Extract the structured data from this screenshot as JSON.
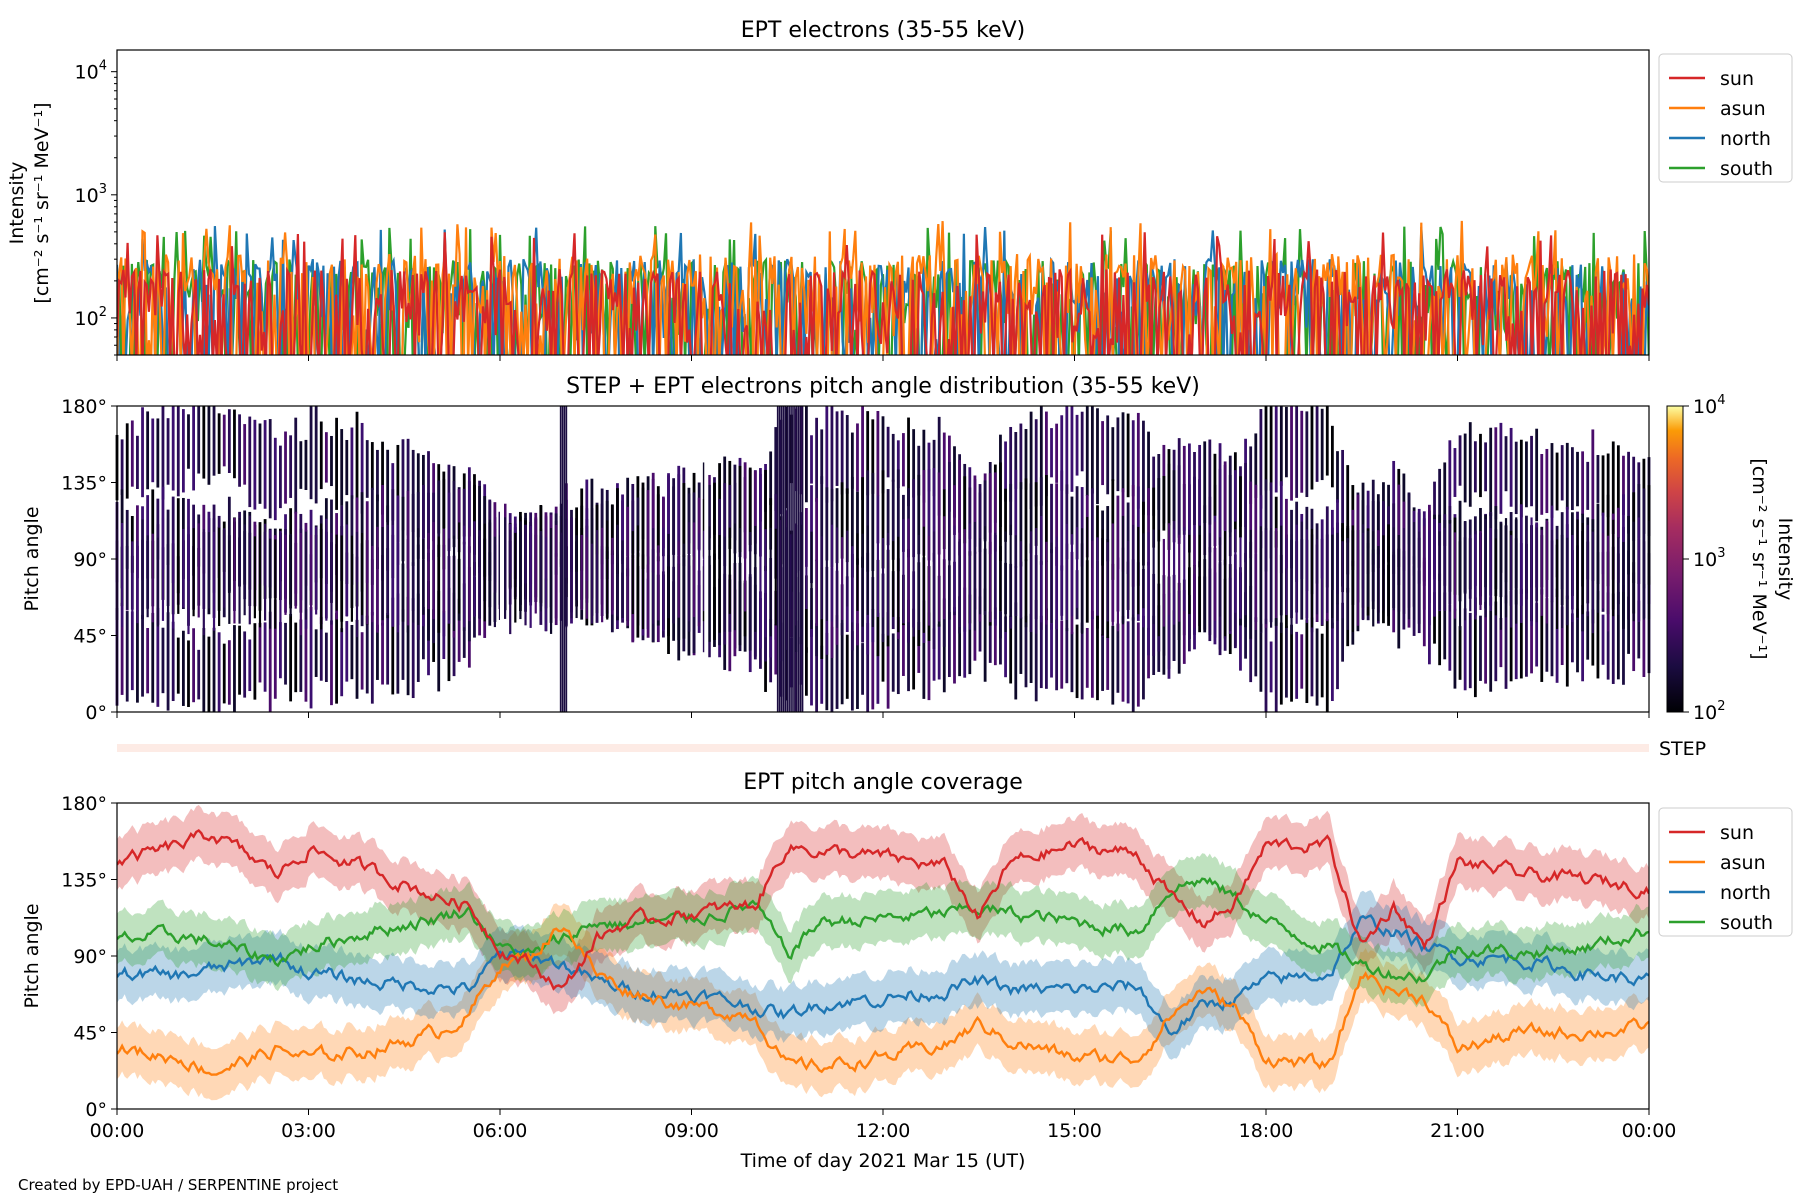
{
  "footer": "Created by EPD-UAH / SERPENTINE project",
  "colors": {
    "sun": "#d62728",
    "asun": "#ff7f0e",
    "north": "#1f77b4",
    "south": "#2ca02c"
  },
  "chart_data": [
    {
      "type": "line",
      "title": "EPT electrons (35-55 keV)",
      "ylabel_line1": "Intensity",
      "ylabel_line2": "[cm⁻² s⁻¹ sr⁻¹ MeV⁻¹]",
      "yscale": "log",
      "ylim": [
        50,
        15000
      ],
      "yticks": [
        {
          "base": "10",
          "exp": "2",
          "value": 100
        },
        {
          "base": "10",
          "exp": "3",
          "value": 1000
        },
        {
          "base": "10",
          "exp": "4",
          "value": 10000
        }
      ],
      "xlim_hours": [
        0,
        24
      ],
      "legend_position": "upper right, outside axes",
      "series": [
        {
          "name": "sun",
          "color": "#d62728",
          "typical_range": [
            50,
            250
          ],
          "max": 500
        },
        {
          "name": "asun",
          "color": "#ff7f0e",
          "typical_range": [
            60,
            330
          ],
          "max": 620
        },
        {
          "name": "north",
          "color": "#1f77b4",
          "typical_range": [
            60,
            300
          ],
          "max": 560
        },
        {
          "name": "south",
          "color": "#2ca02c",
          "typical_range": [
            60,
            300
          ],
          "max": 560
        }
      ]
    },
    {
      "type": "heatmap",
      "title": "STEP + EPT electrons pitch angle distribution (35-55 keV)",
      "ylabel": "Pitch angle",
      "ylim": [
        0,
        180
      ],
      "yticks": [
        "0°",
        "45°",
        "90°",
        "135°",
        "180°"
      ],
      "colormap": "inferno",
      "colorbar_scale": "log",
      "colorbar_range": [
        100,
        10000
      ],
      "colorbar_ticks": [
        {
          "base": "10",
          "exp": "2"
        },
        {
          "base": "10",
          "exp": "3"
        },
        {
          "base": "10",
          "exp": "4"
        }
      ],
      "colorbar_label": "Intensity\n[cm⁻² s⁻¹ sr⁻¹ MeV⁻¹]",
      "step_label": "STEP"
    },
    {
      "type": "area",
      "title": "EPT pitch angle coverage",
      "ylabel": "Pitch angle",
      "ylim": [
        0,
        180
      ],
      "yticks": [
        "0°",
        "45°",
        "90°",
        "135°",
        "180°"
      ],
      "xlabel": "Time of day 2021 Mar 15 (UT)",
      "xticks": [
        "00:00",
        "03:00",
        "06:00",
        "09:00",
        "12:00",
        "15:00",
        "18:00",
        "21:00",
        "00:00"
      ],
      "legend_position": "upper right, outside axes",
      "x_hours": [
        0,
        1,
        1.5,
        2,
        2.5,
        3,
        4,
        5,
        5.5,
        6,
        6.5,
        7,
        7.5,
        8,
        9,
        10,
        10.5,
        11,
        12,
        13,
        13.5,
        14,
        15,
        16,
        16.5,
        17,
        17.5,
        18,
        19,
        19.5,
        20,
        20.5,
        21,
        22,
        23,
        24
      ],
      "series": [
        {
          "name": "sun",
          "color": "#d62728",
          "values": [
            145,
            155,
            162,
            150,
            138,
            153,
            140,
            125,
            120,
            95,
            85,
            70,
            100,
            110,
            115,
            120,
            155,
            152,
            148,
            142,
            112,
            145,
            155,
            150,
            125,
            110,
            120,
            155,
            155,
            95,
            120,
            95,
            145,
            138,
            135,
            130
          ]
        },
        {
          "name": "asun",
          "color": "#ff7f0e",
          "values": [
            35,
            30,
            22,
            28,
            35,
            30,
            35,
            45,
            55,
            85,
            90,
            110,
            80,
            70,
            60,
            55,
            25,
            25,
            30,
            38,
            50,
            40,
            30,
            30,
            55,
            70,
            60,
            30,
            25,
            80,
            70,
            65,
            35,
            45,
            45,
            48
          ]
        },
        {
          "name": "north",
          "color": "#1f77b4",
          "values": [
            80,
            78,
            82,
            85,
            90,
            80,
            75,
            72,
            70,
            90,
            90,
            85,
            75,
            70,
            68,
            60,
            55,
            62,
            65,
            70,
            75,
            70,
            70,
            72,
            45,
            60,
            65,
            75,
            80,
            110,
            105,
            95,
            90,
            88,
            80,
            75
          ]
        },
        {
          "name": "south",
          "color": "#2ca02c",
          "values": [
            100,
            102,
            98,
            92,
            88,
            95,
            105,
            112,
            118,
            95,
            90,
            100,
            110,
            108,
            112,
            120,
            90,
            110,
            112,
            115,
            118,
            115,
            110,
            105,
            130,
            135,
            125,
            110,
            95,
            85,
            80,
            78,
            95,
            92,
            95,
            105
          ]
        }
      ]
    }
  ]
}
